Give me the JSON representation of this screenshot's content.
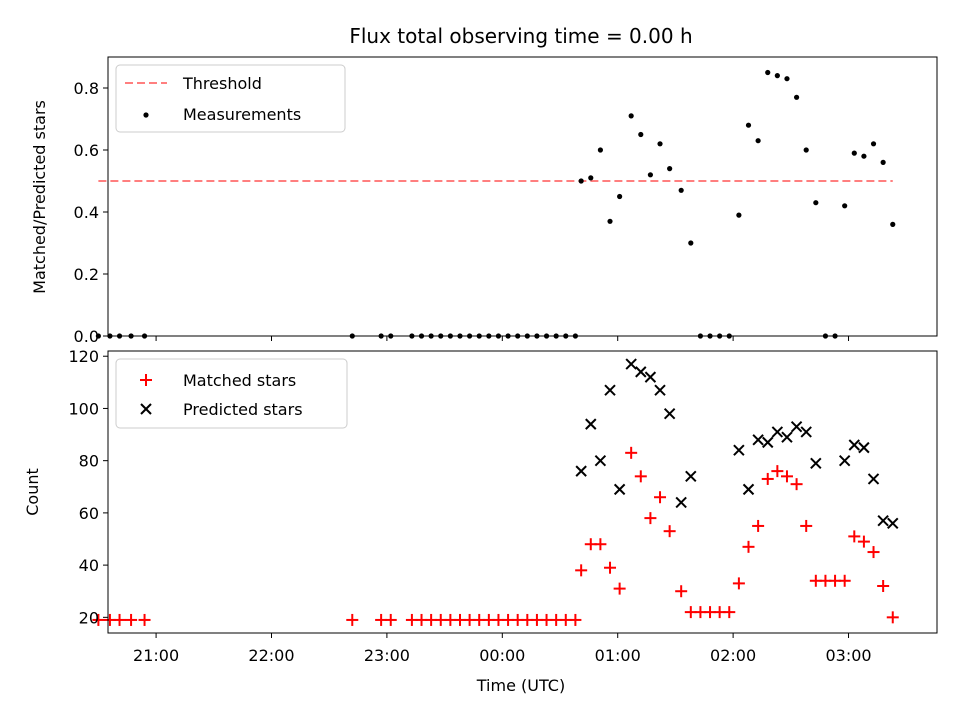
{
  "chart_data": {
    "type": "scatter",
    "title": "Flux total observing time = 0.00 h",
    "xlabel": "Time (UTC)",
    "x_tick_labels": [
      "21:00",
      "22:00",
      "23:00",
      "00:00",
      "01:00",
      "02:00",
      "03:00"
    ],
    "x_range": [
      "20:35",
      "03:46"
    ],
    "times": [
      "20:30",
      "20:36",
      "20:41",
      "20:47",
      "20:54",
      "22:42",
      "22:57",
      "23:02",
      "23:13",
      "23:18",
      "23:23",
      "23:28",
      "23:33",
      "23:38",
      "23:43",
      "23:48",
      "23:53",
      "23:58",
      "00:03",
      "00:08",
      "00:13",
      "00:18",
      "00:23",
      "00:28",
      "00:33",
      "00:38",
      "00:41",
      "00:46",
      "00:51",
      "00:56",
      "01:01",
      "01:07",
      "01:12",
      "01:17",
      "01:22",
      "01:27",
      "01:33",
      "01:38",
      "01:43",
      "01:48",
      "01:53",
      "01:58",
      "02:03",
      "02:08",
      "02:13",
      "02:18",
      "02:23",
      "02:28",
      "02:33",
      "02:38",
      "02:43",
      "02:48",
      "02:53",
      "02:58",
      "03:03",
      "03:08",
      "03:13",
      "03:18",
      "03:23"
    ],
    "panels": [
      {
        "ylabel": "Matched/Predicted stars",
        "ylim": [
          0,
          0.9
        ],
        "y_ticks": [
          "0.0",
          "0.2",
          "0.4",
          "0.6",
          "0.8"
        ],
        "legend_position": "upper-left",
        "threshold": {
          "name": "Threshold",
          "value": 0.5,
          "color": "#ff7f7f"
        },
        "series": [
          {
            "name": "Measurements",
            "marker": "dot",
            "color": "#000000",
            "values": [
              0,
              0,
              0,
              0,
              0,
              0,
              0,
              0,
              0,
              0,
              0,
              0,
              0,
              0,
              0,
              0,
              0,
              0,
              0,
              0,
              0,
              0,
              0,
              0,
              0,
              0,
              0.5,
              0.51,
              0.6,
              0.37,
              0.45,
              0.71,
              0.65,
              0.52,
              0.62,
              0.54,
              0.47,
              0.3,
              0,
              0,
              0,
              0,
              0.39,
              0.68,
              0.63,
              0.85,
              0.84,
              0.83,
              0.77,
              0.6,
              0.43,
              0,
              0,
              0.42,
              0.59,
              0.58,
              0.62,
              0.56,
              0.36
            ]
          }
        ]
      },
      {
        "ylabel": "Count",
        "ylim": [
          14,
          122
        ],
        "y_ticks": [
          "20",
          "40",
          "60",
          "80",
          "100",
          "120"
        ],
        "legend_position": "upper-left",
        "series": [
          {
            "name": "Matched stars",
            "marker": "plus",
            "color": "#ff0000",
            "values": [
              19,
              19,
              19,
              19,
              19,
              19,
              19,
              19,
              19,
              19,
              19,
              19,
              19,
              19,
              19,
              19,
              19,
              19,
              19,
              19,
              19,
              19,
              19,
              19,
              19,
              19,
              38,
              48,
              48,
              39,
              31,
              83,
              74,
              58,
              66,
              53,
              30,
              22,
              22,
              22,
              22,
              22,
              33,
              47,
              55,
              73,
              76,
              74,
              71,
              55,
              34,
              34,
              34,
              34,
              51,
              49,
              45,
              32,
              20
            ]
          },
          {
            "name": "Predicted stars",
            "marker": "x",
            "color": "#000000",
            "values": [
              null,
              null,
              null,
              null,
              null,
              null,
              null,
              null,
              null,
              null,
              null,
              null,
              null,
              null,
              null,
              null,
              null,
              null,
              null,
              null,
              null,
              null,
              null,
              null,
              null,
              null,
              76,
              94,
              80,
              107,
              69,
              117,
              114,
              112,
              107,
              98,
              64,
              74,
              null,
              null,
              null,
              null,
              84,
              69,
              88,
              87,
              91,
              89,
              93,
              91,
              79,
              null,
              null,
              80,
              86,
              85,
              73,
              57,
              56
            ]
          }
        ]
      }
    ]
  }
}
